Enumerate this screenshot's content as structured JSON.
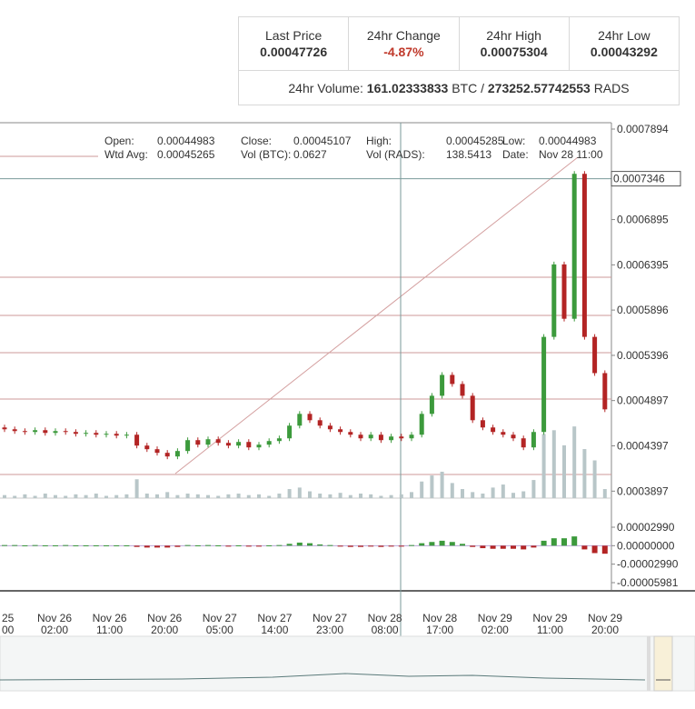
{
  "stats": {
    "cells": [
      {
        "label": "Last Price",
        "value": "0.00047726"
      },
      {
        "label": "24hr Change",
        "value": "-4.87%"
      },
      {
        "label": "24hr High",
        "value": "0.00075304"
      },
      {
        "label": "24hr Low",
        "value": "0.00043292"
      }
    ],
    "volume": {
      "label": "24hr Volume:",
      "btc": "161.02333833",
      "btc_unit": "BTC /",
      "rads": "273252.57742553",
      "rads_unit": "RADS"
    }
  },
  "info": [
    {
      "label": "Open:",
      "value": "0.00044983"
    },
    {
      "label": "Close:",
      "value": "0.00045107"
    },
    {
      "label": "High:",
      "value": "0.00045285"
    },
    {
      "label": "Low:",
      "value": "0.00044983"
    },
    {
      "label": "Wtd Avg:",
      "value": "0.00045265"
    },
    {
      "label": "Vol (BTC):",
      "value": "0.0627"
    },
    {
      "label": "Vol (RADS):",
      "value": "138.5413"
    },
    {
      "label": "Date:",
      "value": "Nov 28 11:00"
    }
  ],
  "chart_data": {
    "type": "candlestick",
    "up_color": "#3c9a3c",
    "down_color": "#b32424",
    "volume_color": "#b8c6c8",
    "ylim": [
      0.000382,
      0.0007894
    ],
    "yticks": [
      0.0007894,
      0.0006895,
      0.0006395,
      0.0005896,
      0.0005396,
      0.0004897,
      0.0004397,
      0.0003897
    ],
    "crosshair_value": 0.0007346,
    "x_labels": [
      [
        "25",
        "00"
      ],
      [
        "Nov 26",
        "02:00"
      ],
      [
        "Nov 26",
        "11:00"
      ],
      [
        "Nov 26",
        "20:00"
      ],
      [
        "Nov 27",
        "05:00"
      ],
      [
        "Nov 27",
        "14:00"
      ],
      [
        "Nov 27",
        "23:00"
      ],
      [
        "Nov 28",
        "08:00"
      ],
      [
        "Nov 28",
        "17:00"
      ],
      [
        "Nov 29",
        "02:00"
      ],
      [
        "Nov 29",
        "11:00"
      ],
      [
        "Nov 29",
        "20:00"
      ]
    ],
    "open": [
      0.00046,
      0.000458,
      0.000456,
      0.000455,
      0.000457,
      0.000454,
      0.000456,
      0.000455,
      0.000453,
      0.000454,
      0.000452,
      0.000453,
      0.000451,
      0.000452,
      0.00044,
      0.000436,
      0.000432,
      0.000428,
      0.000434,
      0.000446,
      0.000441,
      0.000447,
      0.000443,
      0.00044,
      0.000444,
      0.000438,
      0.000441,
      0.000445,
      0.000448,
      0.000462,
      0.000475,
      0.000468,
      0.000462,
      0.000458,
      0.000455,
      0.000452,
      0.000448,
      0.000452,
      0.000446,
      0.00045,
      0.000448,
      0.000452,
      0.000475,
      0.000495,
      0.000518,
      0.000508,
      0.000495,
      0.000468,
      0.00046,
      0.000455,
      0.000452,
      0.000448,
      0.000438,
      0.000455,
      0.00056,
      0.00064,
      0.00058,
      0.00074,
      0.00056,
      0.00052
    ],
    "close": [
      0.000458,
      0.000456,
      0.000455,
      0.000457,
      0.000454,
      0.000456,
      0.000455,
      0.000453,
      0.000454,
      0.000452,
      0.000453,
      0.000451,
      0.000452,
      0.00044,
      0.000436,
      0.000432,
      0.000428,
      0.000434,
      0.000446,
      0.000441,
      0.000447,
      0.000443,
      0.00044,
      0.000444,
      0.000438,
      0.000441,
      0.000445,
      0.000448,
      0.000462,
      0.000475,
      0.000468,
      0.000462,
      0.000458,
      0.000455,
      0.000452,
      0.000448,
      0.000452,
      0.000446,
      0.00045,
      0.000448,
      0.000452,
      0.000475,
      0.000495,
      0.000518,
      0.000508,
      0.000495,
      0.000468,
      0.00046,
      0.000455,
      0.000452,
      0.000448,
      0.000438,
      0.000455,
      0.00056,
      0.00064,
      0.00058,
      0.00074,
      0.00056,
      0.00052,
      0.00048
    ],
    "vlim": [
      0,
      10
    ],
    "volume": [
      0.4,
      0.3,
      0.5,
      0.3,
      0.6,
      0.4,
      0.3,
      0.5,
      0.4,
      0.6,
      0.3,
      0.4,
      0.5,
      2.5,
      0.6,
      0.5,
      0.8,
      0.4,
      0.6,
      0.5,
      0.4,
      0.3,
      0.5,
      0.6,
      0.4,
      0.5,
      0.3,
      0.6,
      1.2,
      1.4,
      0.9,
      0.6,
      0.5,
      0.7,
      0.4,
      0.6,
      0.5,
      0.3,
      0.4,
      0.5,
      0.8,
      2.2,
      3.0,
      3.5,
      2.0,
      1.2,
      0.8,
      0.6,
      1.4,
      1.8,
      0.7,
      0.9,
      2.4,
      8.5,
      9.0,
      7.0,
      9.5,
      6.5,
      5.0,
      1.2
    ],
    "macd_lim": [
      -6e-05,
      3.5e-05
    ],
    "macd_ticks": [
      {
        "value": 2.99e-05,
        "label": "0.00002990"
      },
      {
        "value": 0,
        "label": "0.00000000"
      },
      {
        "value": -2.99e-05,
        "label": "-0.00002990"
      },
      {
        "value": -5.981e-05,
        "label": "-0.00005981"
      }
    ],
    "macd_hist": [
      1e-06,
      1e-06,
      5e-07,
      1e-06,
      5e-07,
      5e-07,
      1e-06,
      5e-07,
      5e-07,
      5e-07,
      5e-07,
      5e-07,
      5e-07,
      -2e-06,
      -3e-06,
      -3e-06,
      -3e-06,
      -2e-06,
      1e-06,
      5e-07,
      1e-06,
      5e-07,
      -5e-07,
      5e-07,
      -1e-06,
      -5e-07,
      5e-07,
      1e-06,
      3e-06,
      5e-06,
      4e-06,
      2e-06,
      1e-06,
      -1e-06,
      -2e-06,
      -2e-06,
      -1e-06,
      -2e-06,
      -1e-06,
      -5e-07,
      1e-06,
      4e-06,
      6e-06,
      8e-06,
      6e-06,
      3e-06,
      -2e-06,
      -4e-06,
      -5e-06,
      -5e-06,
      -5e-06,
      -6e-06,
      -3e-06,
      8e-06,
      1.2e-05,
      1.2e-05,
      1.5e-05,
      -6e-06,
      -1.2e-05,
      -1.3e-05
    ]
  }
}
